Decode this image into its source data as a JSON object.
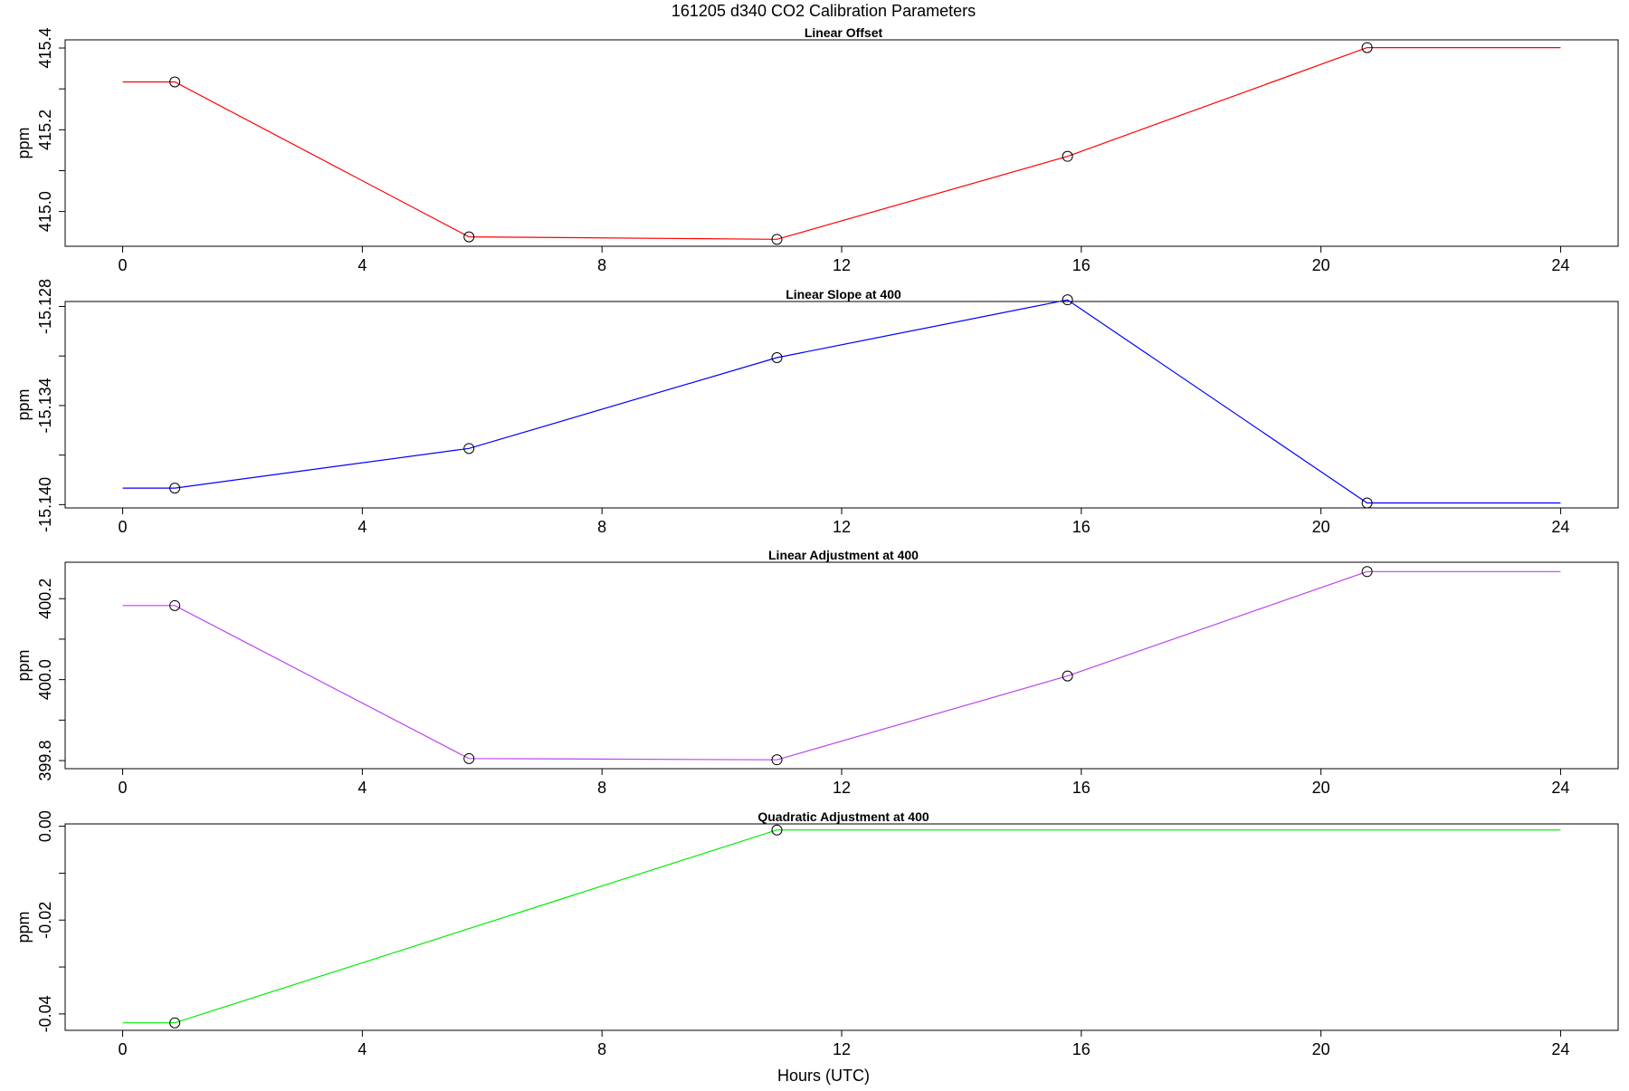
{
  "title": "161205   d340   CO2 Calibration Parameters",
  "xlabel": "Hours (UTC)",
  "chart_data": [
    {
      "type": "line",
      "title": "Linear Offset",
      "ylabel": "ppm",
      "color": "#ff0000",
      "xlim": [
        -0.96,
        24.96
      ],
      "ylim": [
        414.915,
        415.42
      ],
      "xticks": [
        0,
        4,
        8,
        12,
        16,
        20,
        24
      ],
      "yticks": [
        415.0,
        415.1,
        415.2,
        415.3,
        415.4
      ],
      "ytick_labels": [
        "415.0",
        "",
        "415.2",
        "",
        "415.4"
      ],
      "points": [
        {
          "x": 0.87,
          "y": 415.317
        },
        {
          "x": 5.78,
          "y": 414.938
        },
        {
          "x": 10.92,
          "y": 414.932
        },
        {
          "x": 15.77,
          "y": 415.135
        },
        {
          "x": 20.77,
          "y": 415.401
        }
      ],
      "line": [
        {
          "x": 0,
          "y": 415.317
        },
        {
          "x": 0.87,
          "y": 415.317
        },
        {
          "x": 5.78,
          "y": 414.938
        },
        {
          "x": 10.92,
          "y": 414.932
        },
        {
          "x": 15.77,
          "y": 415.135
        },
        {
          "x": 20.77,
          "y": 415.401
        },
        {
          "x": 24,
          "y": 415.401
        }
      ]
    },
    {
      "type": "line",
      "title": "Linear Slope at 400",
      "ylabel": "ppm",
      "color": "#0000ff",
      "xlim": [
        -0.96,
        24.96
      ],
      "ylim": [
        -15.1402,
        -15.1277
      ],
      "xticks": [
        0,
        4,
        8,
        12,
        16,
        20,
        24
      ],
      "yticks": [
        -15.14,
        -15.137,
        -15.134,
        -15.131,
        -15.128
      ],
      "ytick_labels": [
        "-15.140",
        "",
        "-15.134",
        "",
        "-15.128"
      ],
      "points": [
        {
          "x": 0.87,
          "y": -15.139
        },
        {
          "x": 5.78,
          "y": -15.1366
        },
        {
          "x": 10.92,
          "y": -15.1311
        },
        {
          "x": 15.77,
          "y": -15.1276
        },
        {
          "x": 20.77,
          "y": -15.1399
        }
      ],
      "line": [
        {
          "x": 0,
          "y": -15.139
        },
        {
          "x": 0.87,
          "y": -15.139
        },
        {
          "x": 5.78,
          "y": -15.1366
        },
        {
          "x": 10.92,
          "y": -15.1311
        },
        {
          "x": 15.77,
          "y": -15.1276
        },
        {
          "x": 20.77,
          "y": -15.1399
        },
        {
          "x": 24,
          "y": -15.1399
        }
      ]
    },
    {
      "type": "line",
      "title": "Linear Adjustment at 400",
      "ylabel": "ppm",
      "color": "#bb44ee",
      "xlim": [
        -0.96,
        24.96
      ],
      "ylim": [
        399.78,
        400.29
      ],
      "xticks": [
        0,
        4,
        8,
        12,
        16,
        20,
        24
      ],
      "yticks": [
        399.8,
        399.9,
        400.0,
        400.1,
        400.2
      ],
      "ytick_labels": [
        "399.8",
        "",
        "400.0",
        "",
        "400.2"
      ],
      "points": [
        {
          "x": 0.87,
          "y": 400.183
        },
        {
          "x": 5.78,
          "y": 399.805
        },
        {
          "x": 10.92,
          "y": 399.802
        },
        {
          "x": 15.77,
          "y": 400.009
        },
        {
          "x": 20.77,
          "y": 400.267
        }
      ],
      "line": [
        {
          "x": 0,
          "y": 400.183
        },
        {
          "x": 0.87,
          "y": 400.183
        },
        {
          "x": 5.78,
          "y": 399.805
        },
        {
          "x": 10.92,
          "y": 399.802
        },
        {
          "x": 15.77,
          "y": 400.009
        },
        {
          "x": 20.77,
          "y": 400.267
        },
        {
          "x": 24,
          "y": 400.267
        }
      ]
    },
    {
      "type": "line",
      "title": "Quadratic Adjustment at 400",
      "ylabel": "ppm",
      "color": "#00ee00",
      "xlim": [
        -0.96,
        24.96
      ],
      "ylim": [
        -0.0435,
        0.0005
      ],
      "xticks": [
        0,
        4,
        8,
        12,
        16,
        20,
        24
      ],
      "yticks": [
        -0.04,
        -0.03,
        -0.02,
        -0.01,
        0.0
      ],
      "ytick_labels": [
        "-0.04",
        "",
        "-0.02",
        "",
        "0.00"
      ],
      "points": [
        {
          "x": 0.87,
          "y": -0.0419
        },
        {
          "x": 10.92,
          "y": -0.0008
        }
      ],
      "line": [
        {
          "x": 0,
          "y": -0.0419
        },
        {
          "x": 0.87,
          "y": -0.0419
        },
        {
          "x": 10.92,
          "y": -0.0008
        },
        {
          "x": 24,
          "y": -0.0008
        }
      ]
    }
  ]
}
